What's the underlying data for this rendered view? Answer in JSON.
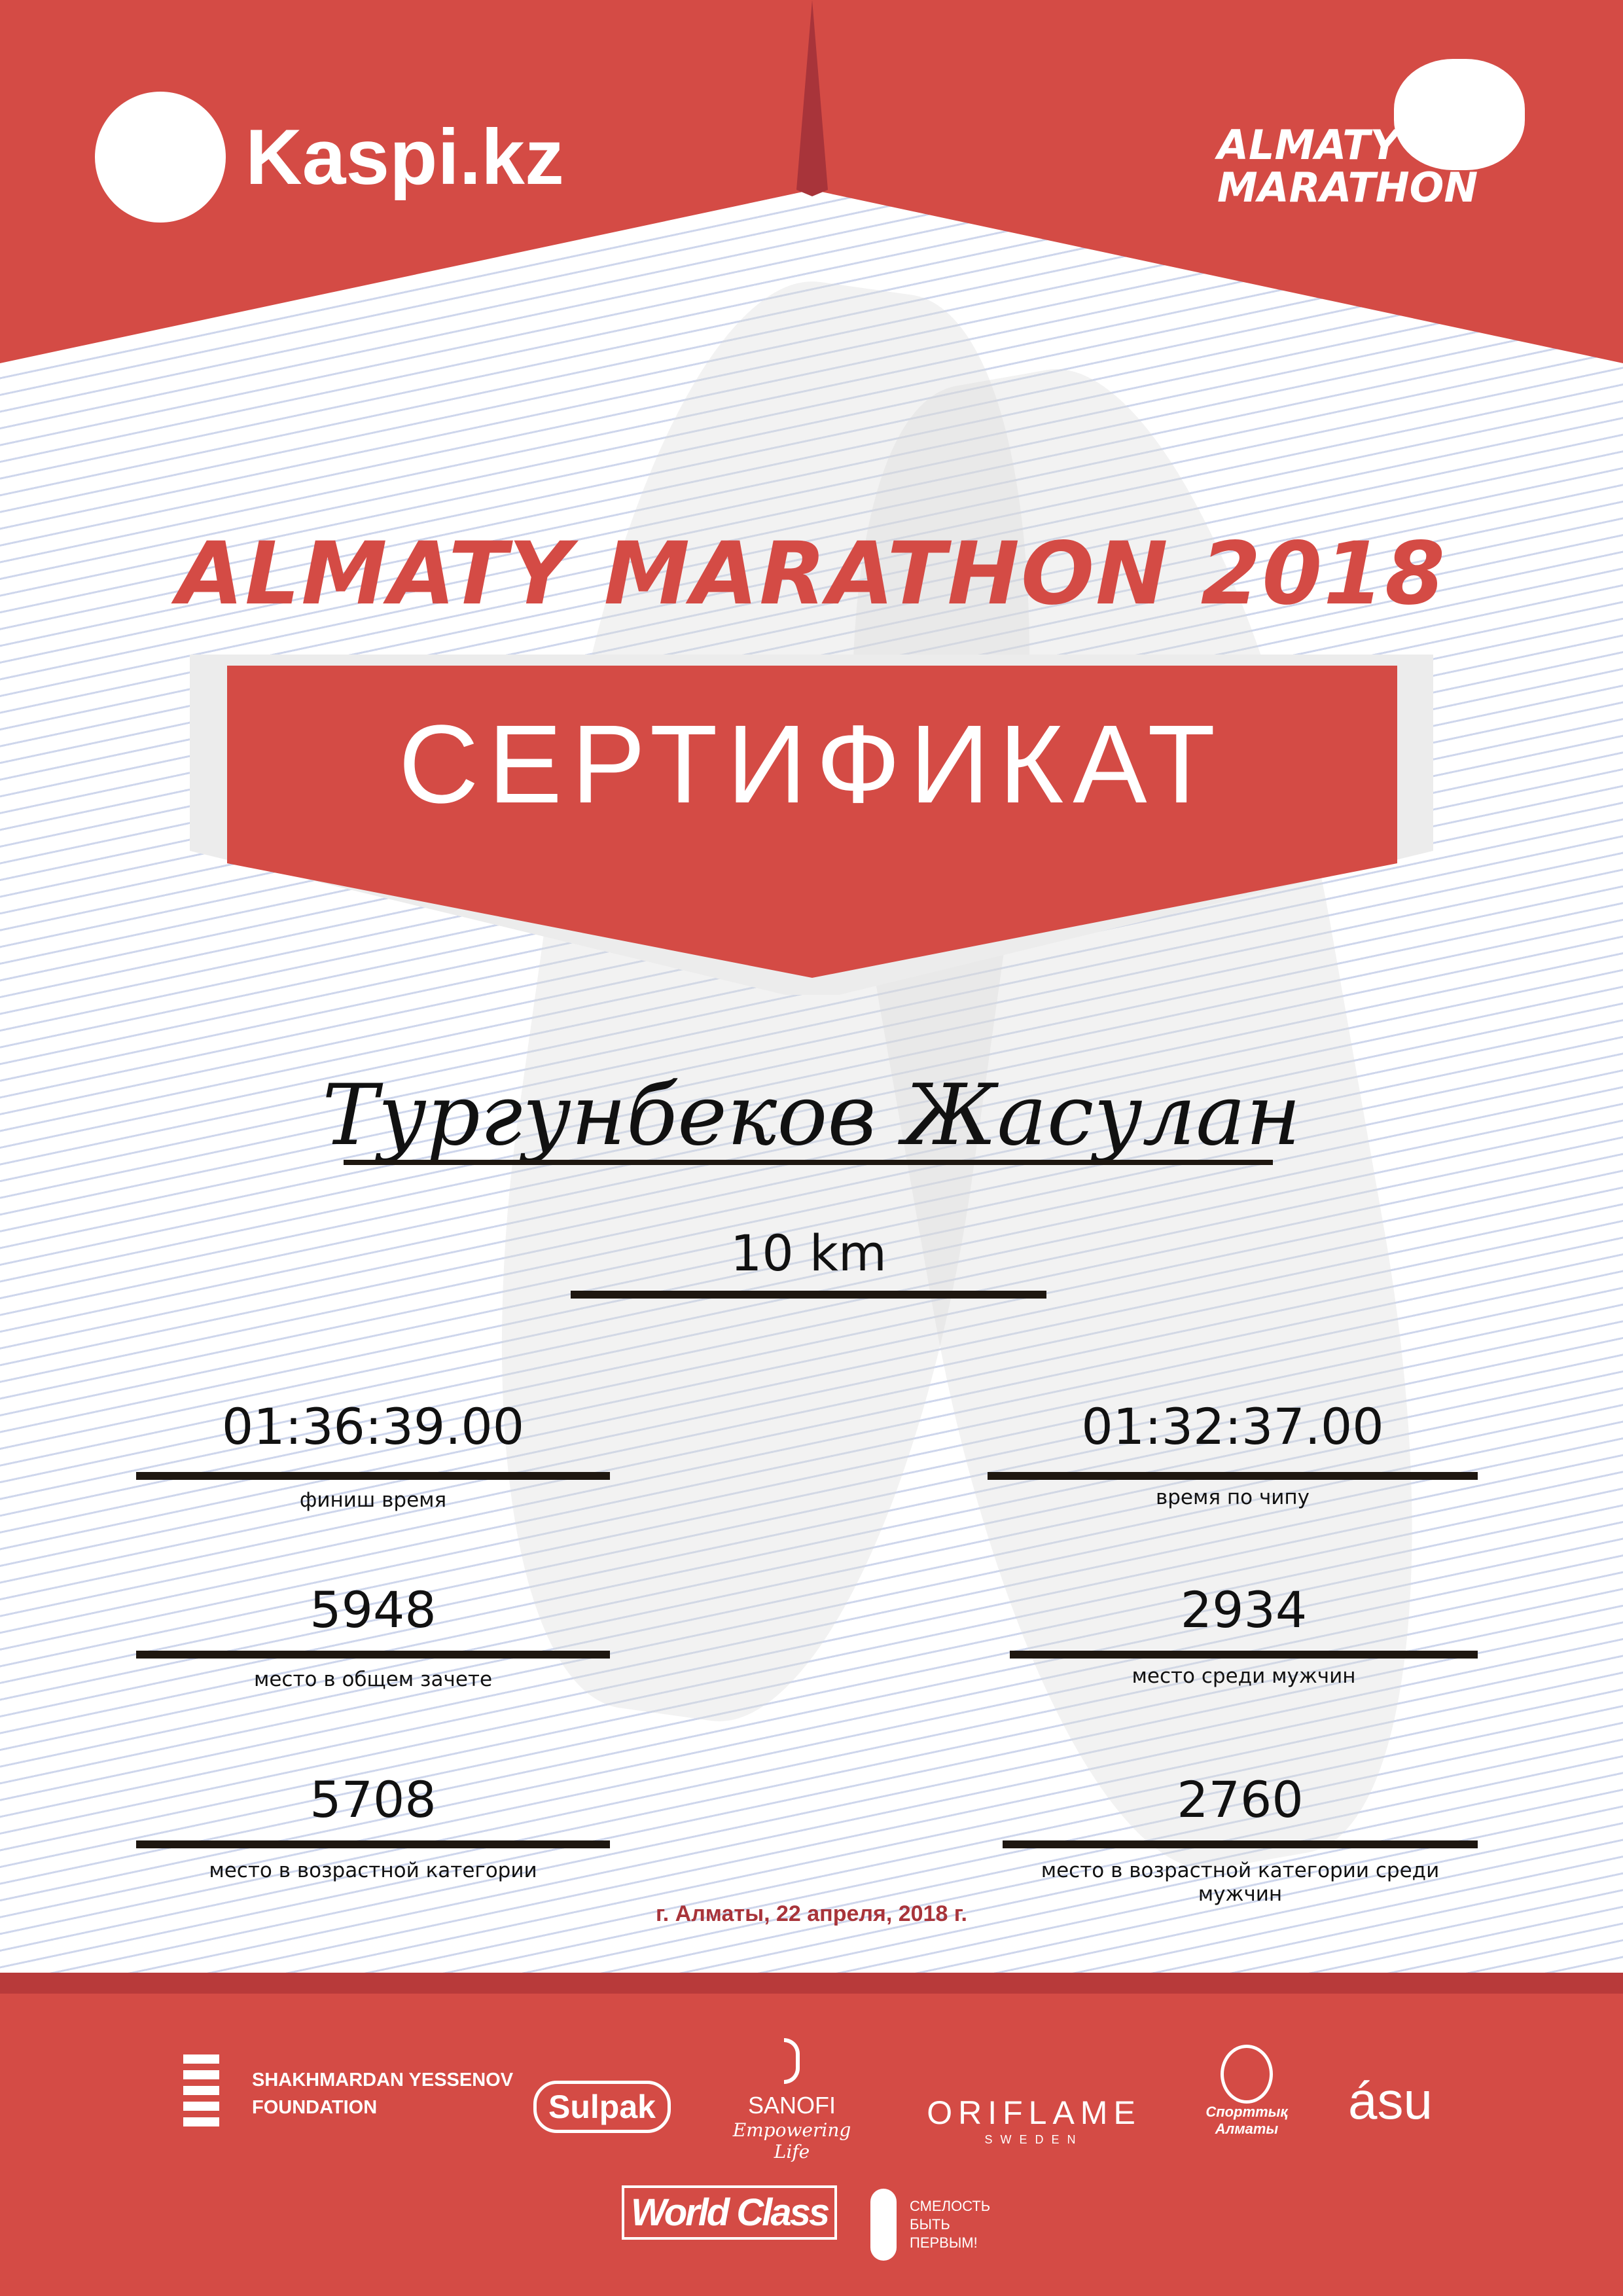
{
  "header": {
    "kaspi_logo": "Kaspi.kz",
    "marathon_logo": [
      "ALMATY",
      "MARATHON"
    ]
  },
  "event_title": "ALMATY MARATHON 2018",
  "certificate_title": "СЕРТИФИКАТ",
  "participant_name": "Тургунбеков Жасулан",
  "distance": "10 km",
  "results": {
    "finish_time": {
      "value": "01:36:39.00",
      "label": "финиш время"
    },
    "chip_time": {
      "value": "01:32:37.00",
      "label": "время по чипу"
    },
    "overall_place": {
      "value": "5948",
      "label": "место в общем зачете"
    },
    "men_place": {
      "value": "2934",
      "label": "место среди мужчин"
    },
    "age_place": {
      "value": "5708",
      "label": "место в возрастной категории"
    },
    "age_men_place": {
      "value": "2760",
      "label": "место в возрастной категории среди мужчин"
    }
  },
  "date_line": "г. Алматы, 22 апреля, 2018 г.",
  "sponsors": {
    "yessenov": [
      "SHAKHMARDAN YESSENOV",
      "FOUNDATION"
    ],
    "sulpak": "Sulpak",
    "sanofi": "SANOFI",
    "sanofi_tagline": "Empowering Life",
    "oriflame": "ORIFLAME",
    "oriflame_sub": "SWEDEN",
    "sport_almaty": [
      "Спорттық",
      "Алматы"
    ],
    "asu": "ásu",
    "worldclass": "World Class",
    "fund": [
      "СМЕЛОСТЬ",
      "БЫТЬ",
      "ПЕРВЫМ!"
    ]
  },
  "colors": {
    "brand_red": "#d44b45",
    "dark_red": "#a8343a"
  }
}
